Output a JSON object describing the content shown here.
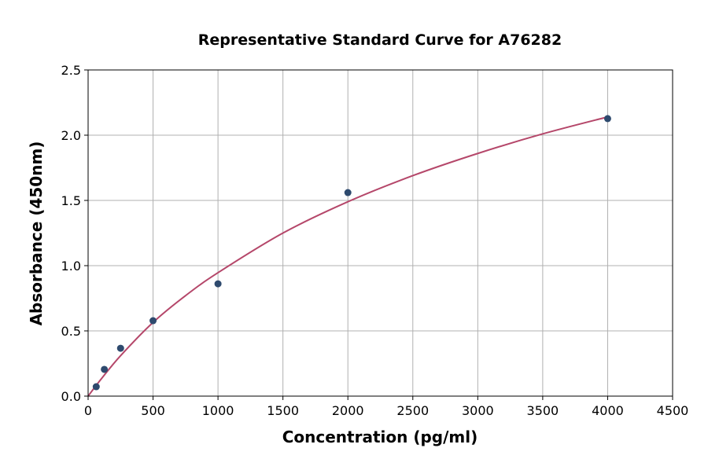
{
  "chart_data": {
    "type": "scatter",
    "title": "Representative Standard Curve for A76282",
    "xlabel": "Concentration (pg/ml)",
    "ylabel": "Absorbance (450nm)",
    "xlim": [
      0,
      4500
    ],
    "ylim": [
      0,
      2.5
    ],
    "xticks": [
      "0",
      "500",
      "1000",
      "1500",
      "2000",
      "2500",
      "3000",
      "3500",
      "4000",
      "4500"
    ],
    "yticks": [
      "0.0",
      "0.5",
      "1.0",
      "1.5",
      "2.0",
      "2.5"
    ],
    "grid": true,
    "points": [
      {
        "x": 62.5,
        "y": 0.072
      },
      {
        "x": 125,
        "y": 0.205
      },
      {
        "x": 250,
        "y": 0.367
      },
      {
        "x": 500,
        "y": 0.578
      },
      {
        "x": 1000,
        "y": 0.861
      },
      {
        "x": 2000,
        "y": 1.56
      },
      {
        "x": 4000,
        "y": 2.127
      }
    ],
    "fit_curve": [
      {
        "x": 0,
        "y": 0.0
      },
      {
        "x": 100,
        "y": 0.13
      },
      {
        "x": 250,
        "y": 0.31
      },
      {
        "x": 500,
        "y": 0.565
      },
      {
        "x": 750,
        "y": 0.77
      },
      {
        "x": 1000,
        "y": 0.946
      },
      {
        "x": 1500,
        "y": 1.25
      },
      {
        "x": 2000,
        "y": 1.49
      },
      {
        "x": 2500,
        "y": 1.69
      },
      {
        "x": 3000,
        "y": 1.86
      },
      {
        "x": 3500,
        "y": 2.01
      },
      {
        "x": 4000,
        "y": 2.14
      }
    ],
    "colors": {
      "points": "#2e4a6e",
      "curve": "#b5476a",
      "grid": "#b0b0b0"
    }
  }
}
